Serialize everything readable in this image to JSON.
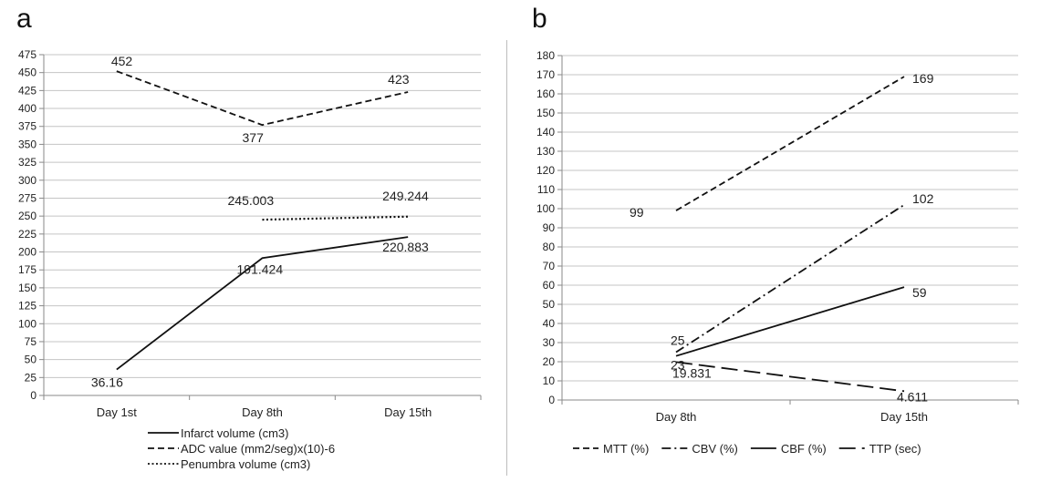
{
  "chart_data": [
    {
      "panel_label": "a",
      "type": "line",
      "categories": [
        "Day 1st",
        "Day 8th",
        "Day 15th"
      ],
      "ylim": [
        0,
        475
      ],
      "ytick_step": 25,
      "grid": true,
      "legend_position": "bottom",
      "series": [
        {
          "name": "Infarct volume (cm3)",
          "style": "solid",
          "values": [
            36.16,
            191.424,
            220.883
          ],
          "labels": [
            "36.16",
            "191.424",
            "220.883"
          ]
        },
        {
          "name": "ADC value (mm2/seg)x(10)-6",
          "style": "dashed",
          "values": [
            452,
            377,
            423
          ],
          "labels": [
            "452",
            "377",
            "423"
          ]
        },
        {
          "name": "Penumbra volume (cm3)",
          "style": "dotted",
          "values": [
            null,
            245.003,
            249.244
          ],
          "labels": [
            "",
            "245.003",
            "249.244"
          ]
        }
      ]
    },
    {
      "panel_label": "b",
      "type": "line",
      "categories": [
        "Day 8th",
        "Day 15th"
      ],
      "ylim": [
        0,
        180
      ],
      "ytick_step": 10,
      "grid": true,
      "legend_position": "bottom",
      "series": [
        {
          "name": "MTT (%)",
          "style": "dashed",
          "values": [
            99,
            169
          ],
          "labels": [
            "99",
            "169"
          ]
        },
        {
          "name": "CBV (%)",
          "style": "dashdot",
          "values": [
            25,
            102
          ],
          "labels": [
            "25",
            "102"
          ]
        },
        {
          "name": "CBF (%)",
          "style": "solid",
          "values": [
            23,
            59
          ],
          "labels": [
            "23",
            "59"
          ]
        },
        {
          "name": "TTP (sec)",
          "style": "longdash",
          "values": [
            19.831,
            4.611
          ],
          "labels": [
            "19.831",
            "4.611"
          ]
        }
      ]
    }
  ]
}
